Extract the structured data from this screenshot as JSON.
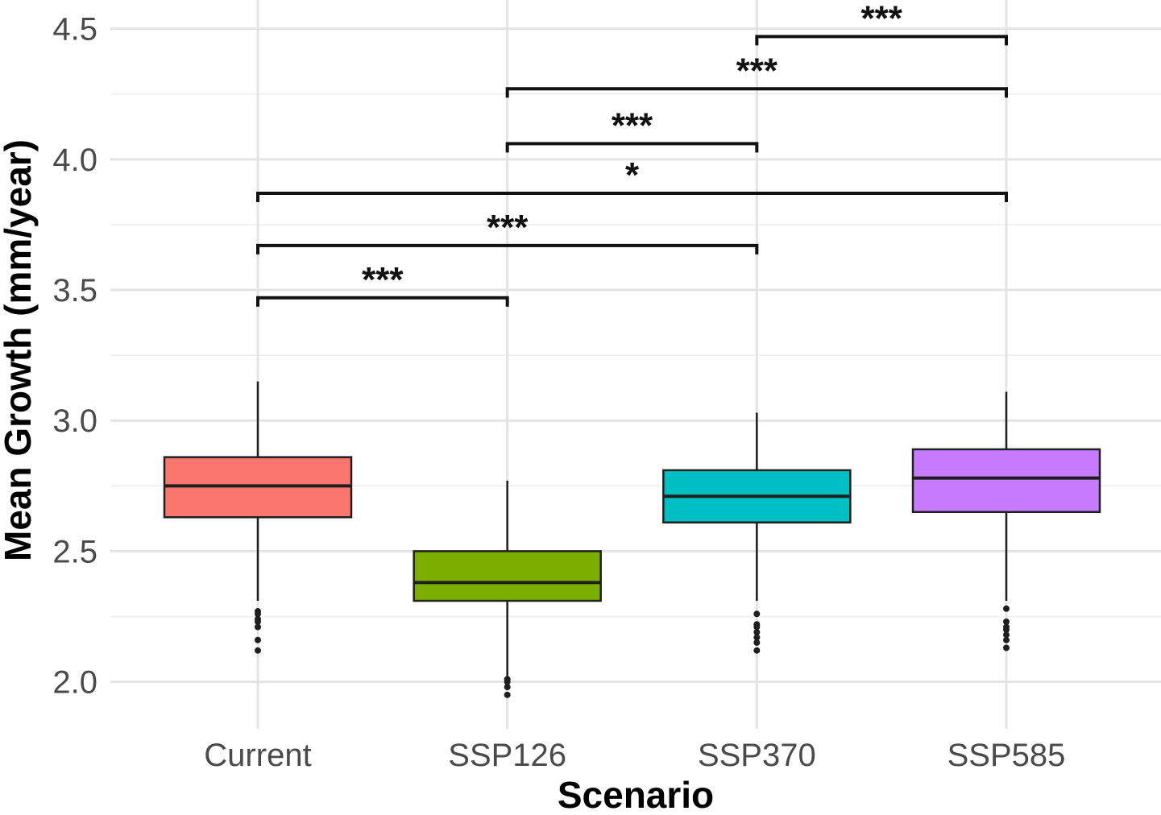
{
  "chart_data": {
    "type": "boxplot",
    "title": "",
    "xlabel": "Scenario",
    "ylabel": "Mean Growth (mm/year)",
    "ylim": [
      1.82,
      4.61
    ],
    "y_ticks": [
      2.0,
      2.5,
      3.0,
      3.5,
      4.0,
      4.5
    ],
    "y_tick_labels": [
      "2.0",
      "2.5",
      "3.0",
      "3.5",
      "4.0",
      "4.5"
    ],
    "y_minor_ticks": [
      2.25,
      2.75,
      3.25,
      3.75,
      4.25
    ],
    "grid": true,
    "legend_position": "none",
    "categories": [
      "Current",
      "SSP126",
      "SSP370",
      "SSP585"
    ],
    "series": [
      {
        "name": "Current",
        "color": "#F8766D",
        "whisker_low": 2.31,
        "q1": 2.63,
        "median": 2.75,
        "q3": 2.86,
        "whisker_high": 3.15,
        "outliers": [
          2.27,
          2.26,
          2.24,
          2.23,
          2.21,
          2.16,
          2.12
        ]
      },
      {
        "name": "SSP126",
        "color": "#7CAE00",
        "whisker_low": 2.02,
        "q1": 2.31,
        "median": 2.38,
        "q3": 2.5,
        "whisker_high": 2.77,
        "outliers": [
          2.01,
          2.0,
          1.98,
          1.95
        ]
      },
      {
        "name": "SSP370",
        "color": "#00BFC4",
        "whisker_low": 2.31,
        "q1": 2.61,
        "median": 2.71,
        "q3": 2.81,
        "whisker_high": 3.03,
        "outliers": [
          2.26,
          2.22,
          2.21,
          2.19,
          2.17,
          2.15,
          2.12
        ]
      },
      {
        "name": "SSP585",
        "color": "#C77CFF",
        "whisker_low": 2.31,
        "q1": 2.65,
        "median": 2.78,
        "q3": 2.89,
        "whisker_high": 3.11,
        "outliers": [
          2.28,
          2.23,
          2.21,
          2.2,
          2.18,
          2.16,
          2.13
        ]
      }
    ],
    "significance_brackets": [
      {
        "from": "Current",
        "to": "SSP126",
        "label": "***",
        "y": 3.47
      },
      {
        "from": "Current",
        "to": "SSP370",
        "label": "***",
        "y": 3.67
      },
      {
        "from": "Current",
        "to": "SSP585",
        "label": "*",
        "y": 3.87
      },
      {
        "from": "SSP126",
        "to": "SSP370",
        "label": "***",
        "y": 4.06
      },
      {
        "from": "SSP126",
        "to": "SSP585",
        "label": "***",
        "y": 4.27
      },
      {
        "from": "SSP370",
        "to": "SSP585",
        "label": "***",
        "y": 4.47
      }
    ],
    "style": {
      "background": "#FFFFFF",
      "box_border_color": "#1F1F1F",
      "median_color": "#1F1F1F",
      "whisker_color": "#1F1F1F",
      "outlier_color": "#1F1F1F",
      "bracket_color": "#111111",
      "grid_major_color": "#E4E4E4",
      "grid_minor_color": "#EFEFEF",
      "tick_label_color": "#4A4A4A",
      "axis_title_color": "#000000"
    }
  }
}
